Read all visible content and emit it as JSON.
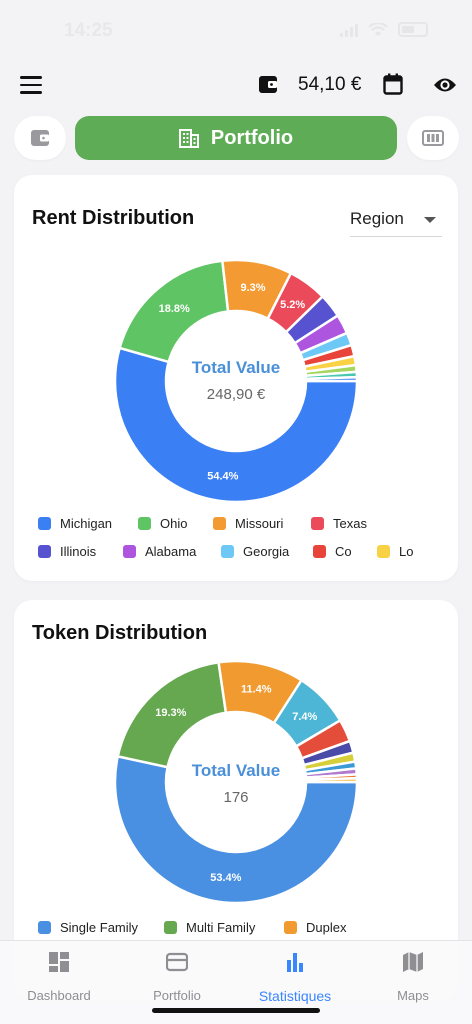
{
  "status": {
    "time": "14:25",
    "battery": "50"
  },
  "topbar": {
    "balance": "54,10 €"
  },
  "tabs": {
    "portfolio_label": "Portfolio"
  },
  "rent_card": {
    "title": "Rent Distribution",
    "filter": "Region",
    "center_title": "Total Value",
    "center_value": "248,90 €",
    "legend": [
      {
        "name": "Michigan",
        "color": "#3b7ff5"
      },
      {
        "name": "Ohio",
        "color": "#5fc463"
      },
      {
        "name": "Missouri",
        "color": "#f39a32"
      },
      {
        "name": "Texas",
        "color": "#ea4a5a"
      },
      {
        "name": "Illinois",
        "color": "#5752cf"
      },
      {
        "name": "Alabama",
        "color": "#ae55e0"
      },
      {
        "name": "Georgia",
        "color": "#6ec8f5"
      },
      {
        "name": "Co",
        "color": "#e8443a"
      },
      {
        "name": "Lo",
        "color": "#f8d145"
      }
    ]
  },
  "token_card": {
    "title": "Token Distribution",
    "center_title": "Total Value",
    "center_value": "176",
    "legend": [
      {
        "name": "Single Family",
        "color": "#4a90e2"
      },
      {
        "name": "Multi Family",
        "color": "#65a84f"
      },
      {
        "name": "Duplex",
        "color": "#f09a2f"
      }
    ]
  },
  "chart_data": [
    {
      "type": "pie",
      "title": "Rent Distribution",
      "slices": [
        {
          "label": "Michigan",
          "value": 54.4,
          "color": "#3b7ff5",
          "shown": "54.4%"
        },
        {
          "label": "Ohio",
          "value": 18.8,
          "color": "#5fc463",
          "shown": "18.8%"
        },
        {
          "label": "Missouri",
          "value": 9.3,
          "color": "#f39a32",
          "shown": "9.3%"
        },
        {
          "label": "Texas",
          "value": 5.2,
          "color": "#ea4a5a",
          "shown": "5.2%"
        },
        {
          "label": "Illinois",
          "value": 3.2,
          "color": "#5752cf",
          "shown": ""
        },
        {
          "label": "Alabama",
          "value": 2.6,
          "color": "#ae55e0",
          "shown": ""
        },
        {
          "label": "Georgia",
          "value": 1.7,
          "color": "#6ec8f5",
          "shown": ""
        },
        {
          "label": "Co",
          "value": 1.5,
          "color": "#e8443a",
          "shown": ""
        },
        {
          "label": "Lo",
          "value": 1.2,
          "color": "#f8d145",
          "shown": ""
        },
        {
          "label": "",
          "value": 0.9,
          "color": "#a4d65e",
          "shown": ""
        },
        {
          "label": "",
          "value": 0.7,
          "color": "#47c7b0",
          "shown": ""
        },
        {
          "label": "",
          "value": 0.5,
          "color": "#3b7ff5",
          "shown": ""
        }
      ]
    },
    {
      "type": "pie",
      "title": "Token Distribution",
      "slices": [
        {
          "label": "Single Family",
          "value": 53.4,
          "color": "#4a90e2",
          "shown": "53.4%"
        },
        {
          "label": "Multi Family",
          "value": 19.3,
          "color": "#65a84f",
          "shown": "19.3%"
        },
        {
          "label": "Duplex",
          "value": 11.4,
          "color": "#f09a2f",
          "shown": "11.4%"
        },
        {
          "label": "",
          "value": 7.4,
          "color": "#4db6d6",
          "shown": "7.4%"
        },
        {
          "label": "",
          "value": 3.0,
          "color": "#e44d3a",
          "shown": ""
        },
        {
          "label": "",
          "value": 1.6,
          "color": "#4a4aa8",
          "shown": ""
        },
        {
          "label": "",
          "value": 1.2,
          "color": "#d6cf3a",
          "shown": ""
        },
        {
          "label": "",
          "value": 0.9,
          "color": "#3a9ad6",
          "shown": ""
        },
        {
          "label": "",
          "value": 0.8,
          "color": "#b07ad0",
          "shown": ""
        },
        {
          "label": "",
          "value": 0.5,
          "color": "#ea7a3a",
          "shown": ""
        },
        {
          "label": "",
          "value": 0.5,
          "color": "#f5c04a",
          "shown": ""
        }
      ]
    }
  ],
  "nav": [
    {
      "label": "Dashboard",
      "icon": "dashboard-icon"
    },
    {
      "label": "Portfolio",
      "icon": "wallet-icon"
    },
    {
      "label": "Statistiques",
      "icon": "bar-chart-icon",
      "active": true
    },
    {
      "label": "Maps",
      "icon": "map-icon"
    }
  ]
}
